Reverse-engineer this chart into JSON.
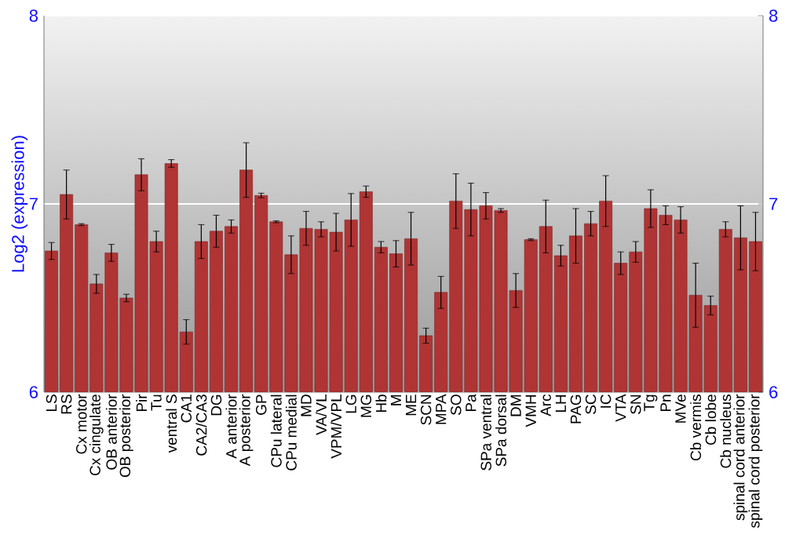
{
  "chart_data": {
    "type": "bar",
    "ylabel": "Log2 (expression)",
    "categories": [
      "LS",
      "RS",
      "Cx motor",
      "Cx cingulate",
      "OB anterior",
      "OB posterior",
      "Pir",
      "Tu",
      "ventral S",
      "CA1",
      "CA2/CA3",
      "DG",
      "A anterior",
      "A posterior",
      "GP",
      "CPu lateral",
      "CPu medial",
      "MD",
      "VA/VL",
      "VPM/VPL",
      "LG",
      "MG",
      "Hb",
      "M",
      "ME",
      "SCN",
      "MPA",
      "SO",
      "Pa",
      "SPa ventral",
      "SPa dorsal",
      "DM",
      "VMH",
      "Arc",
      "LH",
      "PAG",
      "SC",
      "IC",
      "VTA",
      "SN",
      "Tg",
      "Pn",
      "MVe",
      "Cb vermis",
      "Cb lobe",
      "Cb nucleus",
      "spinal cord anterior",
      "spinal cord posterior"
    ],
    "values": [
      6.75,
      7.05,
      6.89,
      6.575,
      6.74,
      6.5,
      7.155,
      6.8,
      7.215,
      6.32,
      6.8,
      6.855,
      6.88,
      7.18,
      7.045,
      6.905,
      6.73,
      6.87,
      6.865,
      6.85,
      6.915,
      7.065,
      6.77,
      6.735,
      6.815,
      6.3,
      6.53,
      7.015,
      6.97,
      6.99,
      6.965,
      6.54,
      6.81,
      6.88,
      6.725,
      6.83,
      6.895,
      7.015,
      6.685,
      6.745,
      6.975,
      6.94,
      6.915,
      6.515,
      6.46,
      6.865,
      6.82,
      6.8
    ],
    "errors": [
      0.045,
      0.13,
      0.005,
      0.05,
      0.045,
      0.02,
      0.085,
      0.055,
      0.02,
      0.065,
      0.09,
      0.085,
      0.035,
      0.145,
      0.012,
      0.005,
      0.1,
      0.09,
      0.04,
      0.1,
      0.14,
      0.03,
      0.03,
      0.07,
      0.14,
      0.04,
      0.085,
      0.145,
      0.14,
      0.07,
      0.01,
      0.09,
      0.005,
      0.14,
      0.055,
      0.145,
      0.065,
      0.135,
      0.06,
      0.055,
      0.1,
      0.05,
      0.07,
      0.17,
      0.05,
      0.04,
      0.17,
      0.155
    ],
    "color": "#b03434",
    "ylim": [
      6,
      8
    ],
    "yticks": [
      6,
      7,
      8
    ],
    "y2lim": [
      6,
      8
    ],
    "y2ticks": [
      6,
      7,
      8
    ],
    "grid": "y"
  }
}
